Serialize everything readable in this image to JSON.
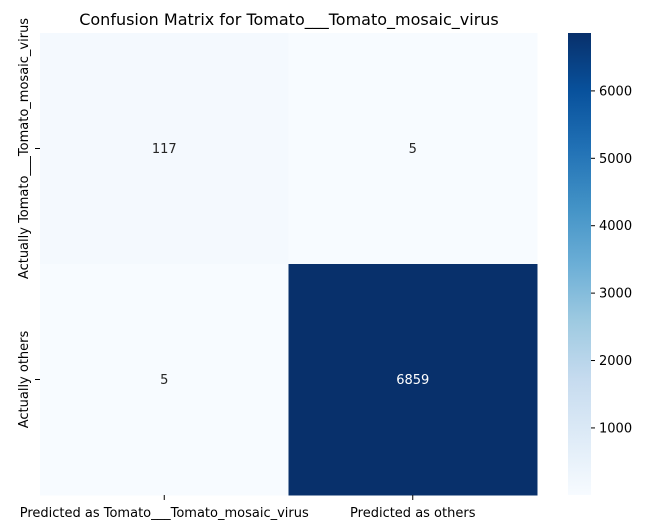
{
  "chart_data": {
    "type": "heatmap",
    "title": "Confusion Matrix for Tomato___Tomato_mosaic_virus",
    "xlabel": "",
    "ylabel": "",
    "x_categories": [
      "Predicted as Tomato___Tomato_mosaic_virus",
      "Predicted as others"
    ],
    "y_categories": [
      "Actually Tomato___Tomato_mosaic_virus",
      "Actually others"
    ],
    "values": [
      [
        117,
        5
      ],
      [
        5,
        6859
      ]
    ],
    "colormap": "Blues",
    "colorbar": {
      "min": 5,
      "max": 6859,
      "ticks": [
        1000,
        2000,
        3000,
        4000,
        5000,
        6000
      ]
    },
    "annotation_colors": {
      "light_cell": "#262626",
      "dark_cell": "#ffffff"
    },
    "grid": false
  }
}
